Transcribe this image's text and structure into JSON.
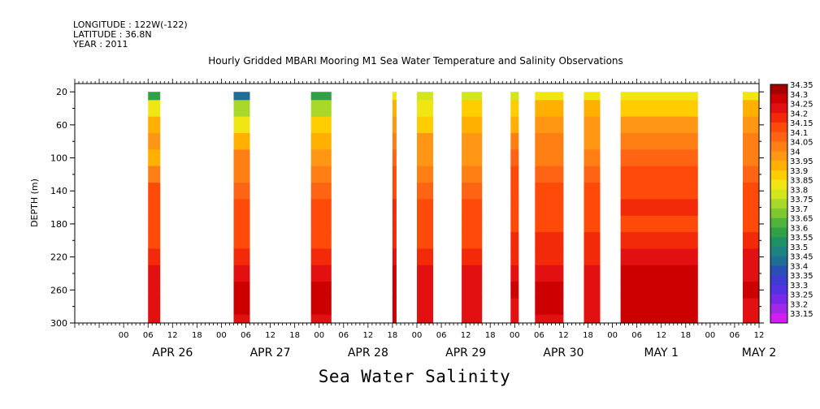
{
  "meta": {
    "longitude": "LONGITUDE : 122W(-122)",
    "latitude": "LATITUDE : 36.8N",
    "year": "YEAR : 2011"
  },
  "chart_data": {
    "type": "heatmap",
    "title": "Hourly Gridded MBARI Mooring M1 Sea Water Temperature and Salinity Observations",
    "xlabel": "Sea Water Salinity",
    "ylabel": "DEPTH (m)",
    "x_unit": "hours from 2011-04-26 00:00",
    "xlim": [
      -12,
      156
    ],
    "ylim": [
      300,
      10
    ],
    "y_ticks": [
      20,
      60,
      100,
      140,
      180,
      220,
      260,
      300
    ],
    "x_hour_tick_labels": [
      "00",
      "06",
      "12",
      "18",
      "00",
      "06",
      "12",
      "18",
      "00",
      "06",
      "12",
      "18",
      "00",
      "06",
      "12",
      "18",
      "00",
      "06",
      "12",
      "18",
      "00",
      "06",
      "12",
      "18",
      "00",
      "06",
      "12",
      "18",
      "00",
      "06",
      "12",
      "18"
    ],
    "x_day_labels": [
      "APR 26",
      "APR 27",
      "APR 28",
      "APR 29",
      "APR 30",
      "MAY  1",
      "MAY  2"
    ],
    "colorbar": {
      "levels": [
        "34.35",
        "34.3",
        "34.25",
        "34.2",
        "34.15",
        "34.1",
        "34.05",
        "34",
        "33.95",
        "33.9",
        "33.85",
        "33.8",
        "33.75",
        "33.7",
        "33.65",
        "33.6",
        "33.55",
        "33.5",
        "33.45",
        "33.4",
        "33.35",
        "33.3",
        "33.25",
        "33.2",
        "33.15"
      ],
      "colors": [
        "#a50000",
        "#cc0000",
        "#e21010",
        "#f22a0a",
        "#ff4a0a",
        "#ff6414",
        "#ff7f14",
        "#ff9614",
        "#ffb000",
        "#ffcd00",
        "#f0e614",
        "#d2e61e",
        "#a8d82a",
        "#80c832",
        "#50b43c",
        "#32a046",
        "#1e9164",
        "#1e8282",
        "#1e6e96",
        "#2850b4",
        "#3c3cd2",
        "#5532e1",
        "#7828e6",
        "#a028e6",
        "#d21ef5"
      ]
    },
    "profile_depths": [
      20,
      40,
      60,
      80,
      100,
      120,
      140,
      160,
      180,
      200,
      220,
      240,
      260,
      280,
      300
    ],
    "segments": [
      {
        "start": 6,
        "end": 9,
        "profile": [
          33.6,
          33.85,
          33.95,
          34.0,
          33.95,
          34.05,
          34.15,
          34.15,
          34.15,
          34.15,
          34.2,
          34.25,
          34.25,
          34.25,
          34.25
        ]
      },
      {
        "start": 27,
        "end": 31,
        "profile": [
          33.45,
          33.75,
          33.85,
          33.95,
          34.05,
          34.05,
          34.1,
          34.15,
          34.15,
          34.15,
          34.2,
          34.25,
          34.3,
          34.3,
          34.25
        ]
      },
      {
        "start": 46,
        "end": 51,
        "profile": [
          33.6,
          33.75,
          33.9,
          33.95,
          34.0,
          34.05,
          34.1,
          34.15,
          34.15,
          34.15,
          34.2,
          34.25,
          34.3,
          34.3,
          34.25
        ]
      },
      {
        "start": 66,
        "end": 67,
        "profile": [
          33.85,
          33.95,
          34.0,
          34.05,
          34.1,
          34.15,
          34.15,
          34.2,
          34.2,
          34.2,
          34.25,
          34.3,
          34.3,
          34.3,
          34.3
        ]
      },
      {
        "start": 72,
        "end": 76,
        "profile": [
          33.8,
          33.85,
          33.9,
          34.0,
          34.0,
          34.05,
          34.1,
          34.15,
          34.15,
          34.15,
          34.2,
          34.25,
          34.25,
          34.25,
          34.25
        ]
      },
      {
        "start": 83,
        "end": 88,
        "profile": [
          33.8,
          33.9,
          33.95,
          34.0,
          34.0,
          34.05,
          34.1,
          34.15,
          34.15,
          34.15,
          34.2,
          34.25,
          34.25,
          34.25,
          34.25
        ]
      },
      {
        "start": 95,
        "end": 97,
        "profile": [
          33.8,
          33.9,
          33.95,
          34.05,
          34.1,
          34.15,
          34.15,
          34.15,
          34.15,
          34.2,
          34.2,
          34.25,
          34.3,
          34.25,
          34.25
        ]
      },
      {
        "start": 101,
        "end": 108,
        "profile": [
          33.85,
          33.95,
          34.0,
          34.05,
          34.05,
          34.1,
          34.15,
          34.15,
          34.15,
          34.2,
          34.2,
          34.25,
          34.3,
          34.3,
          34.25
        ]
      },
      {
        "start": 113,
        "end": 117,
        "profile": [
          33.85,
          33.95,
          34.0,
          34.0,
          34.05,
          34.1,
          34.15,
          34.15,
          34.15,
          34.2,
          34.2,
          34.25,
          34.25,
          34.25,
          34.25
        ]
      },
      {
        "start": 122,
        "end": 141,
        "profile": [
          33.85,
          33.9,
          34.0,
          34.05,
          34.1,
          34.15,
          34.15,
          34.2,
          34.15,
          34.2,
          34.25,
          34.3,
          34.3,
          34.3,
          34.3
        ]
      },
      {
        "start": 152,
        "end": 160,
        "profile": [
          33.85,
          33.95,
          34.0,
          34.05,
          34.05,
          34.1,
          34.15,
          34.15,
          34.15,
          34.2,
          34.25,
          34.25,
          34.3,
          34.25,
          34.25
        ]
      }
    ]
  }
}
